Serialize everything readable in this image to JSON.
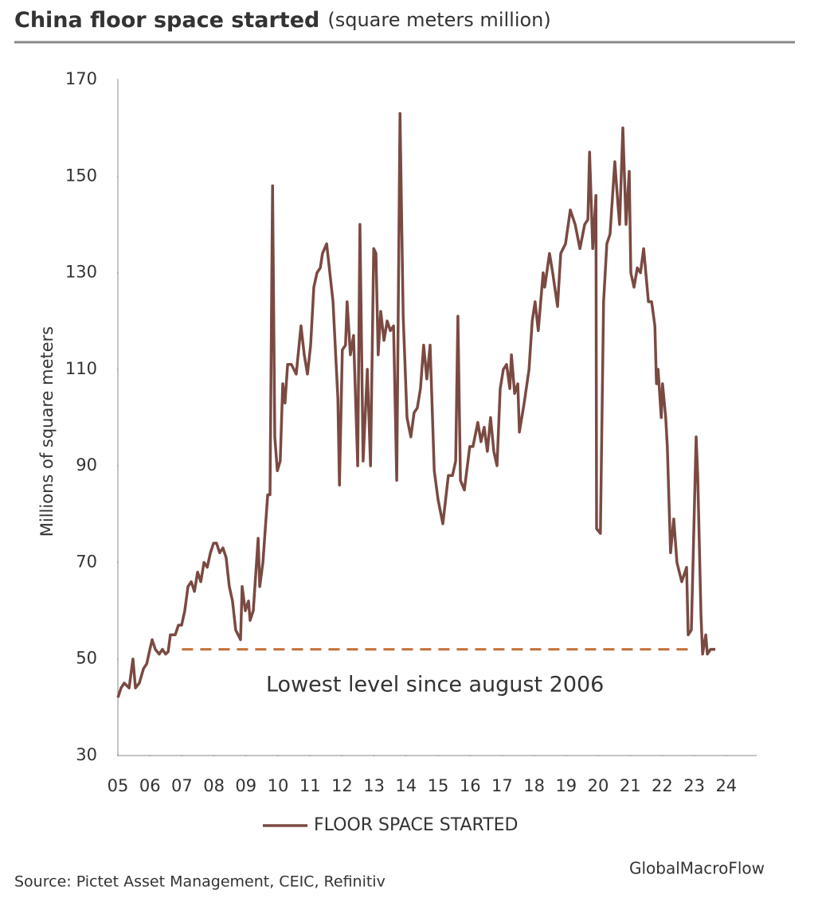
{
  "chart_data": {
    "type": "line",
    "title": "China floor space started",
    "subtitle": "(square meters million)",
    "ylabel": "Millions  of square meters",
    "source": "Source: Pictet Asset Management, CEIC, Refinitiv",
    "watermark": "GlobalMacroFlow",
    "legend": "bottom",
    "grid": false,
    "xlim": [
      2005,
      2024.95
    ],
    "ylim": [
      30,
      170
    ],
    "yticks": [
      30,
      50,
      70,
      90,
      110,
      130,
      150,
      170
    ],
    "xticks": [
      {
        "value": 2005,
        "label": "05"
      },
      {
        "value": 2006,
        "label": "06"
      },
      {
        "value": 2007,
        "label": "07"
      },
      {
        "value": 2008,
        "label": "08"
      },
      {
        "value": 2009,
        "label": "09"
      },
      {
        "value": 2010,
        "label": "10"
      },
      {
        "value": 2011,
        "label": "11"
      },
      {
        "value": 2012,
        "label": "12"
      },
      {
        "value": 2013,
        "label": "13"
      },
      {
        "value": 2014,
        "label": "14"
      },
      {
        "value": 2015,
        "label": "15"
      },
      {
        "value": 2016,
        "label": "16"
      },
      {
        "value": 2017,
        "label": "17"
      },
      {
        "value": 2018,
        "label": "18"
      },
      {
        "value": 2019,
        "label": "19"
      },
      {
        "value": 2020,
        "label": "20"
      },
      {
        "value": 2021,
        "label": "21"
      },
      {
        "value": 2022,
        "label": "22"
      },
      {
        "value": 2023,
        "label": "23"
      },
      {
        "value": 2024,
        "label": "24"
      }
    ],
    "reference_line": {
      "value": 52,
      "x": [
        2007,
        2022.81
      ],
      "label": "Lowest level since august 2006",
      "color": "#c4703c"
    },
    "x": [
      2005.0,
      2005.1,
      2005.2,
      2005.35,
      2005.47,
      2005.55,
      2005.67,
      2005.8,
      2005.9,
      2006.0,
      2006.07,
      2006.17,
      2006.29,
      2006.39,
      2006.49,
      2006.57,
      2006.64,
      2006.79,
      2006.89,
      2006.99,
      2007.09,
      2007.19,
      2007.29,
      2007.39,
      2007.49,
      2007.59,
      2007.69,
      2007.79,
      2007.89,
      2007.99,
      2008.08,
      2008.18,
      2008.28,
      2008.38,
      2008.48,
      2008.58,
      2008.68,
      2008.83,
      2008.88,
      2008.98,
      2009.08,
      2009.13,
      2009.23,
      2009.38,
      2009.43,
      2009.53,
      2009.68,
      2009.75,
      2009.83,
      2009.9,
      2009.98,
      2010.07,
      2010.15,
      2010.22,
      2010.3,
      2010.42,
      2010.57,
      2010.72,
      2010.82,
      2010.92,
      2011.02,
      2011.12,
      2011.22,
      2011.32,
      2011.39,
      2011.52,
      2011.72,
      2011.87,
      2011.92,
      2012.01,
      2012.11,
      2012.16,
      2012.26,
      2012.36,
      2012.49,
      2012.56,
      2012.66,
      2012.79,
      2012.89,
      2012.99,
      2013.06,
      2013.13,
      2013.21,
      2013.31,
      2013.41,
      2013.51,
      2013.61,
      2013.71,
      2013.81,
      2013.91,
      2014.03,
      2014.15,
      2014.25,
      2014.35,
      2014.45,
      2014.55,
      2014.65,
      2014.75,
      2014.88,
      2015.0,
      2015.15,
      2015.32,
      2015.45,
      2015.55,
      2015.62,
      2015.7,
      2015.82,
      2015.99,
      2016.09,
      2016.24,
      2016.34,
      2016.44,
      2016.54,
      2016.64,
      2016.74,
      2016.84,
      2016.94,
      2017.04,
      2017.14,
      2017.24,
      2017.29,
      2017.39,
      2017.49,
      2017.54,
      2017.69,
      2017.84,
      2017.94,
      2018.03,
      2018.13,
      2018.28,
      2018.33,
      2018.48,
      2018.58,
      2018.73,
      2018.83,
      2018.98,
      2019.13,
      2019.28,
      2019.43,
      2019.58,
      2019.68,
      2019.73,
      2019.83,
      2019.93,
      2019.95,
      2020.07,
      2020.17,
      2020.27,
      2020.37,
      2020.52,
      2020.62,
      2020.67,
      2020.77,
      2020.87,
      2020.97,
      2021.02,
      2021.12,
      2021.22,
      2021.32,
      2021.42,
      2021.57,
      2021.67,
      2021.77,
      2021.82,
      2021.87,
      2021.97,
      2022.01,
      2022.11,
      2022.16,
      2022.26,
      2022.36,
      2022.46,
      2022.61,
      2022.71,
      2022.76,
      2022.81,
      2022.91,
      2023.06,
      2023.11,
      2023.21,
      2023.26,
      2023.36,
      2023.41,
      2023.51,
      2023.66
    ],
    "series": [
      {
        "name": "FLOOR SPACE STARTED",
        "color": "#7a4a42",
        "values": [
          42,
          44,
          45,
          44,
          50,
          44,
          45,
          48,
          49,
          52,
          54,
          52,
          51,
          52,
          51,
          51.5,
          55,
          55,
          57,
          57,
          60,
          65,
          66,
          64,
          68,
          66,
          70,
          69,
          72,
          74,
          74,
          72,
          73,
          71,
          65,
          62,
          56,
          54,
          65,
          60,
          62,
          58,
          60,
          75,
          65,
          70,
          84,
          84,
          148,
          96,
          89,
          91,
          107,
          103,
          111,
          111,
          109,
          119,
          113,
          109,
          115,
          127,
          130,
          131,
          134,
          136,
          124,
          104,
          86,
          114,
          115,
          124,
          113,
          117,
          90,
          140,
          91,
          110,
          90,
          135,
          134,
          113,
          122,
          116,
          120,
          118,
          119,
          87,
          163,
          121,
          100,
          96,
          101,
          102,
          106,
          115,
          108,
          115,
          89,
          83,
          78,
          88,
          88,
          91,
          121,
          87,
          85,
          94,
          94,
          99,
          95,
          98,
          93,
          100,
          93,
          90,
          106,
          110,
          111,
          106,
          113,
          105,
          107,
          97,
          103,
          110,
          120,
          124,
          118,
          130,
          127,
          134,
          130,
          123,
          134,
          136,
          143,
          140,
          135,
          140,
          141,
          155,
          135,
          146,
          77,
          76,
          124,
          136,
          138,
          153,
          144,
          140,
          160,
          140,
          151,
          130,
          127,
          131,
          130,
          135,
          124,
          124,
          119,
          107,
          110,
          100,
          107,
          100,
          94,
          72,
          79,
          70,
          66,
          68,
          69,
          55,
          56,
          96,
          88,
          59,
          51,
          55,
          51,
          52,
          52
        ]
      }
    ]
  }
}
